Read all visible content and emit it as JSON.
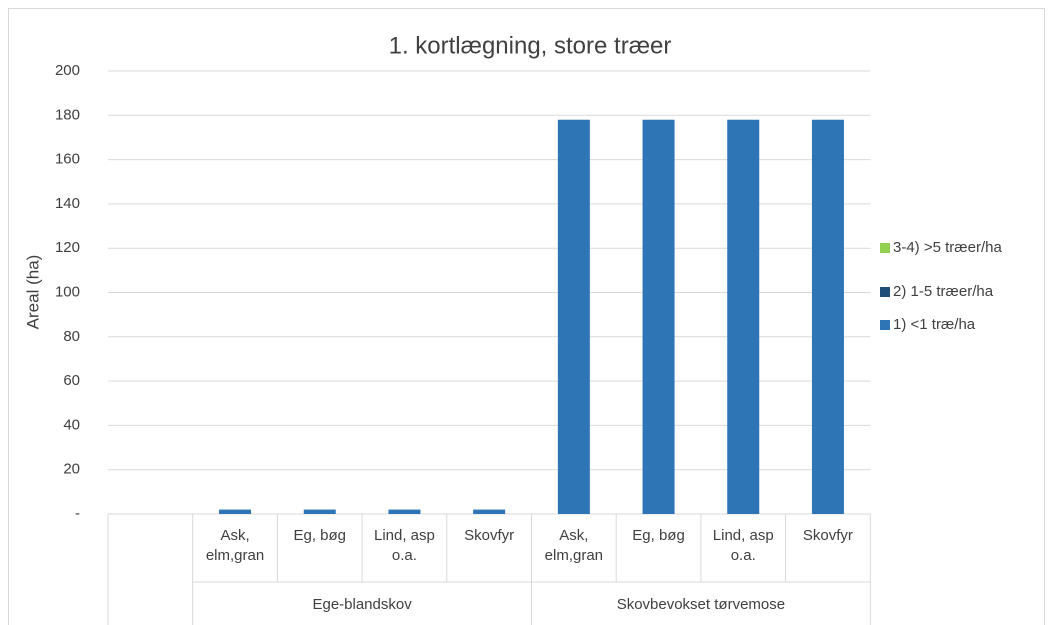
{
  "chart_data": {
    "type": "bar",
    "stacked": true,
    "title": "1. kortlægning, store træer",
    "y_label": "Areal (ha)",
    "category_groups": [
      {
        "name": null,
        "categories": [
          null
        ]
      },
      {
        "name": "Ege-blandskov",
        "categories": [
          "Ask, elm,gran",
          "Eg, bøg",
          "Lind, asp o.a.",
          "Skovfyr"
        ]
      },
      {
        "name": "Skovbevokset tørvemose",
        "categories": [
          "Ask, elm,gran",
          "Eg, bøg",
          "Lind, asp o.a.",
          "Skovfyr"
        ]
      }
    ],
    "series": [
      {
        "name": "1) <1 træ/ha",
        "color": "#2e75b6",
        "values": [
          0,
          2,
          2,
          2,
          2,
          178,
          178,
          178,
          178
        ]
      },
      {
        "name": "2) 1-5 træer/ha",
        "color": "#1f4e79",
        "values": [
          0,
          0,
          0,
          0,
          0,
          0,
          0,
          0,
          0
        ]
      },
      {
        "name": "3-4) >5 træer/ha",
        "color": "#92d050",
        "values": [
          0,
          0,
          0,
          0,
          0,
          0,
          0,
          0,
          0
        ]
      }
    ],
    "ylim": [
      0,
      200
    ],
    "yticks": [
      {
        "value": 0,
        "label": "-"
      },
      20,
      40,
      60,
      80,
      100,
      120,
      140,
      160,
      180,
      200
    ],
    "grid": true,
    "legend": "right"
  }
}
